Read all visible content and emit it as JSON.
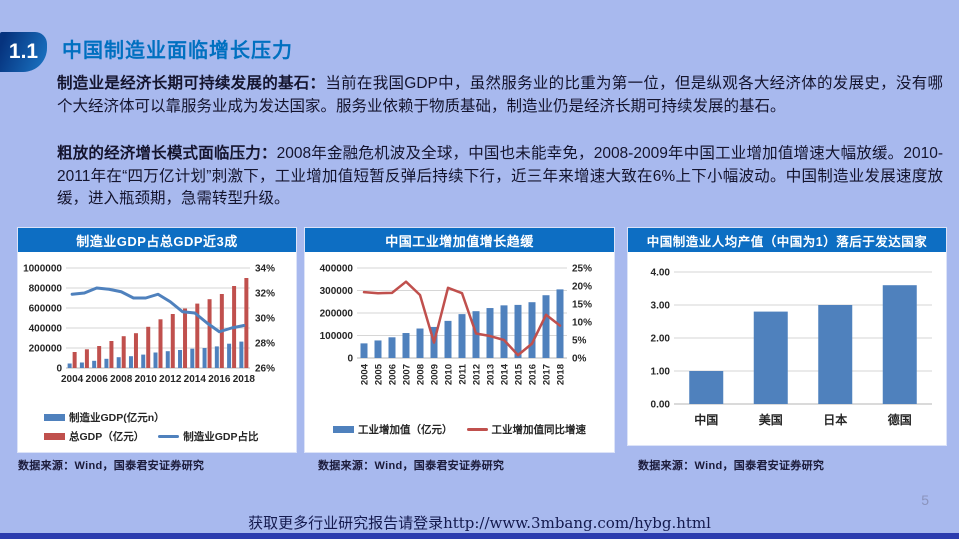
{
  "page": {
    "badge": "1.1",
    "title": "中国制造业面临增长压力",
    "paragraphs": [
      {
        "lead": "制造业是经济长期可持续发展的基石：",
        "text": "当前在我国GDP中，虽然服务业的比重为第一位，但是纵观各大经济体的发展史，没有哪个大经济体可以靠服务业成为发达国家。服务业依赖于物质基础，制造业仍是经济长期可持续发展的基石。"
      },
      {
        "lead": "粗放的经济增长模式面临压力：",
        "text": "2008年金融危机波及全球，中国也未能幸免，2008-2009年中国工业增加值增速大幅放缓。2010-2011年在“四万亿计划”刺激下，工业增加值短暂反弹后持续下行，近三年来增速大致在6%上下小幅波动。中国制造业发展速度放缓，进入瓶颈期，急需转型升级。"
      }
    ],
    "page_number": "5",
    "footer": "获取更多行业研究报告请登录http://www.3mbang.com/hybg.html"
  },
  "colors": {
    "background": "#a8b9ee",
    "accent_blue": "#0070c0",
    "panel_header_blue": "#0d6ec3",
    "bar_blue": "#4f81bd",
    "bar_red": "#c0504d",
    "bottom_strip": "#2b3cae"
  },
  "chart_data": [
    {
      "type": "combo",
      "title": "制造业GDP占总GDP近3成",
      "x": [
        "2004",
        "2005",
        "2006",
        "2007",
        "2008",
        "2009",
        "2010",
        "2011",
        "2012",
        "2013",
        "2014",
        "2015",
        "2016",
        "2017",
        "2018"
      ],
      "x_tick_labels": [
        "2004",
        "2006",
        "2008",
        "2010",
        "2012",
        "2014",
        "2016",
        "2018"
      ],
      "left_axis": {
        "ticks": [
          "1000000",
          "800000",
          "600000",
          "400000",
          "200000",
          "0"
        ],
        "min": 0,
        "max": 1000000
      },
      "right_axis": {
        "ticks": [
          "34%",
          "32%",
          "30%",
          "28%",
          "26%"
        ],
        "min": 26,
        "max": 34
      },
      "series": [
        {
          "name": "制造业GDP(亿元n）",
          "kind": "bar",
          "axis": "left",
          "color": "#4f81bd",
          "values": [
            45000,
            55000,
            72000,
            92000,
            108000,
            118000,
            134000,
            155000,
            168000,
            180000,
            193000,
            200000,
            216000,
            243000,
            264000
          ]
        },
        {
          "name": "总GDP（亿元）",
          "kind": "bar",
          "axis": "left",
          "color": "#c0504d",
          "values": [
            160000,
            187000,
            220000,
            270000,
            318000,
            348000,
            412000,
            487000,
            540000,
            595000,
            644000,
            688000,
            740000,
            820000,
            900000
          ]
        },
        {
          "name": "制造业GDP占比",
          "kind": "line",
          "axis": "right",
          "color": "#4f81bd",
          "values": [
            31.9,
            32.0,
            32.4,
            32.3,
            32.1,
            31.6,
            31.6,
            31.9,
            31.3,
            30.5,
            30.4,
            29.6,
            28.9,
            29.2,
            29.4
          ]
        }
      ],
      "legend_position": "bottom",
      "grid": true,
      "source": "数据来源：Wind，国泰君安证券研究"
    },
    {
      "type": "combo",
      "title": "中国工业增加值增长趋缓",
      "x": [
        "2004",
        "2005",
        "2006",
        "2007",
        "2008",
        "2009",
        "2010",
        "2011",
        "2012",
        "2013",
        "2014",
        "2015",
        "2016",
        "2017",
        "2018"
      ],
      "x_tick_labels": [
        "2004",
        "2005",
        "2006",
        "2007",
        "2008",
        "2009",
        "2010",
        "2011",
        "2012",
        "2013",
        "2014",
        "2015",
        "2016",
        "2017",
        "2018"
      ],
      "left_axis": {
        "ticks": [
          "400000",
          "300000",
          "200000",
          "100000",
          "0"
        ],
        "min": 0,
        "max": 400000
      },
      "right_axis": {
        "ticks": [
          "25%",
          "20%",
          "15%",
          "10%",
          "5%",
          "0%"
        ],
        "min": 0,
        "max": 25
      },
      "series": [
        {
          "name": "工业增加值（亿元）",
          "kind": "bar",
          "axis": "left",
          "color": "#4f81bd",
          "values": [
            65000,
            78000,
            92000,
            111000,
            131000,
            138000,
            165000,
            195000,
            208000,
            222000,
            234000,
            236000,
            248000,
            279000,
            305000
          ]
        },
        {
          "name": "工业增加值同比增速",
          "kind": "line",
          "axis": "right",
          "color": "#c0504d",
          "values": [
            18.3,
            18.0,
            18.1,
            21.2,
            17.5,
            4.3,
            19.5,
            18.0,
            6.8,
            6.1,
            5.0,
            0.8,
            4.0,
            12.0,
            9.0
          ]
        }
      ],
      "legend_position": "bottom",
      "grid": true,
      "source": "数据来源：Wind，国泰君安证券研究"
    },
    {
      "type": "bar",
      "title": "中国制造业人均产值（中国为1）落后于发达国家",
      "categories": [
        "中国",
        "美国",
        "日本",
        "德国"
      ],
      "values": [
        1.0,
        2.8,
        3.0,
        3.6
      ],
      "y_axis": {
        "ticks": [
          "4.00",
          "3.00",
          "2.00",
          "1.00",
          "0.00"
        ],
        "min": 0,
        "max": 4
      },
      "color": "#4f81bd",
      "grid": true,
      "source": "数据来源：Wind，国泰君安证券研究"
    }
  ]
}
